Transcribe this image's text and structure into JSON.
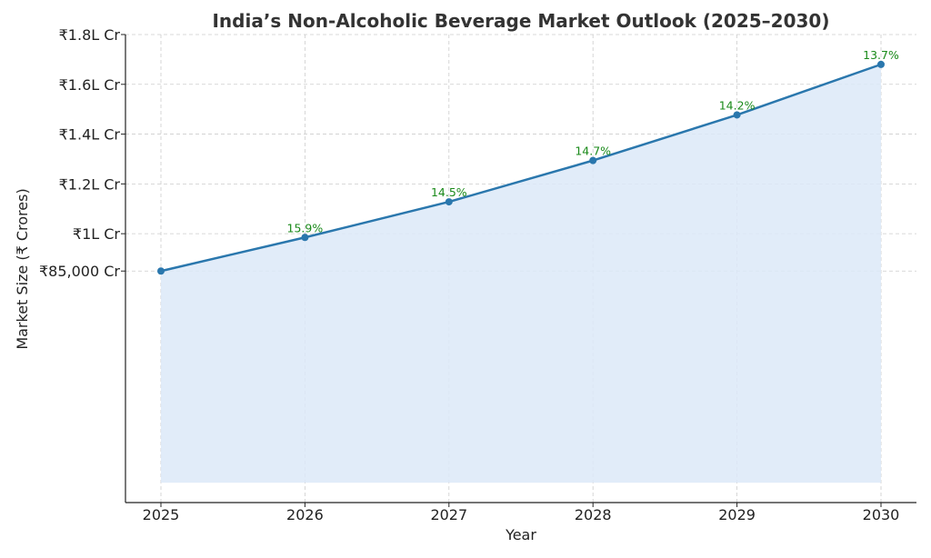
{
  "chart_data": {
    "type": "area",
    "title": "India’s Non-Alcoholic Beverage Market Outlook (2025–2030)",
    "xlabel": "Year",
    "ylabel": "Market Size (₹ Crores)",
    "x": [
      2025,
      2026,
      2027,
      2028,
      2029,
      2030
    ],
    "x_tick_labels": [
      "2025",
      "2026",
      "2027",
      "2028",
      "2029",
      "2030"
    ],
    "series": [
      {
        "values": [
          85000,
          98500,
          112800,
          129400,
          147700,
          168000
        ],
        "point_labels": [
          "",
          "15.9%",
          "14.5%",
          "14.7%",
          "14.2%",
          "13.7%"
        ]
      }
    ],
    "y_ticks": [
      85000,
      100000,
      120000,
      140000,
      160000,
      180000
    ],
    "y_tick_labels": [
      "₹85,000 Cr",
      "₹1L Cr",
      "₹1.2L Cr",
      "₹1.4L Cr",
      "₹1.6L Cr",
      "₹1.8L Cr"
    ],
    "ylim": [
      -8000,
      180000
    ],
    "fill_baseline": 0,
    "grid": true,
    "colors": {
      "line": "#2a77ad",
      "fill": "#dce9f8",
      "label": "#1a8a1a"
    }
  }
}
